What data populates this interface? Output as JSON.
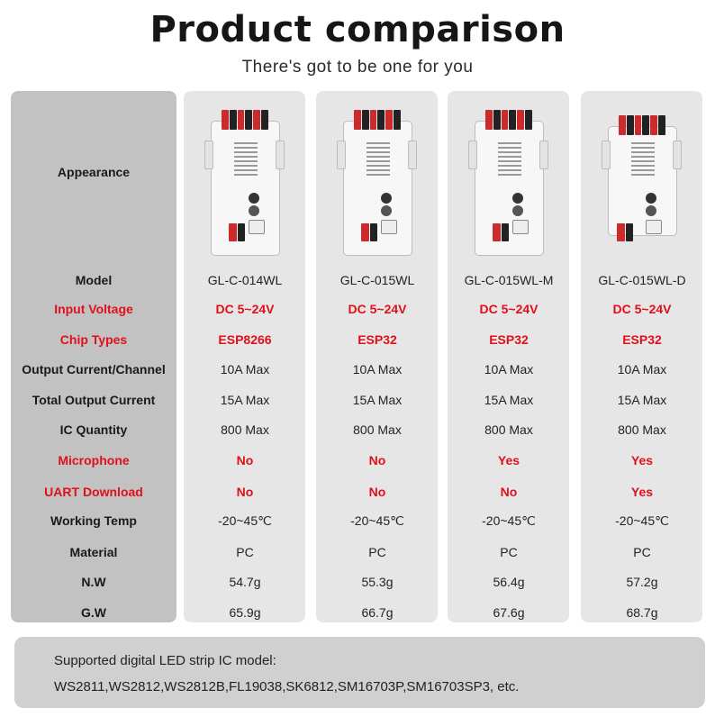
{
  "title": "Product comparison",
  "subtitle": "There's got to be one for you",
  "row_labels": {
    "appearance": "Appearance",
    "model": "Model",
    "input_voltage": "Input Voltage",
    "chip_types": "Chip Types",
    "output_current": "Output Current/Channel",
    "total_output": "Total Output Current",
    "ic_quantity": "IC Quantity",
    "microphone": "Microphone",
    "uart": "UART Download",
    "working_temp": "Working Temp",
    "material": "Material",
    "nw": "N.W",
    "gw": "G.W"
  },
  "products": [
    {
      "model": "GL-C-014WL",
      "input_voltage": "DC 5~24V",
      "chip": "ESP8266",
      "output_current": "10A Max",
      "total_output": "15A Max",
      "ic_quantity": "800 Max",
      "microphone": "No",
      "uart": "No",
      "working_temp": "-20~45℃",
      "material": "PC",
      "nw": "54.7g",
      "gw": "65.9g"
    },
    {
      "model": "GL-C-015WL",
      "input_voltage": "DC 5~24V",
      "chip": "ESP32",
      "output_current": "10A Max",
      "total_output": "15A Max",
      "ic_quantity": "800 Max",
      "microphone": "No",
      "uart": "No",
      "working_temp": "-20~45℃",
      "material": "PC",
      "nw": "55.3g",
      "gw": "66.7g"
    },
    {
      "model": "GL-C-015WL-M",
      "input_voltage": "DC 5~24V",
      "chip": "ESP32",
      "output_current": "10A Max",
      "total_output": "15A Max",
      "ic_quantity": "800 Max",
      "microphone": "Yes",
      "uart": "No",
      "working_temp": "-20~45℃",
      "material": "PC",
      "nw": "56.4g",
      "gw": "67.6g"
    },
    {
      "model": "GL-C-015WL-D",
      "input_voltage": "DC 5~24V",
      "chip": "ESP32",
      "output_current": "10A Max",
      "total_output": "15A Max",
      "ic_quantity": "800 Max",
      "microphone": "Yes",
      "uart": "Yes",
      "working_temp": "-20~45℃",
      "material": "PC",
      "nw": "57.2g",
      "gw": "68.7g"
    }
  ],
  "footer": {
    "line1": "Supported digital LED strip IC model:",
    "line2": "WS2811,WS2812,WS2812B,FL19038,SK6812,SM16703P,SM16703SP3, etc."
  },
  "colors": {
    "accent_red": "#e0101a",
    "label_bg": "#c2c2c2",
    "column_bg": "#e6e6e6",
    "footer_bg": "#d0d0d0"
  }
}
